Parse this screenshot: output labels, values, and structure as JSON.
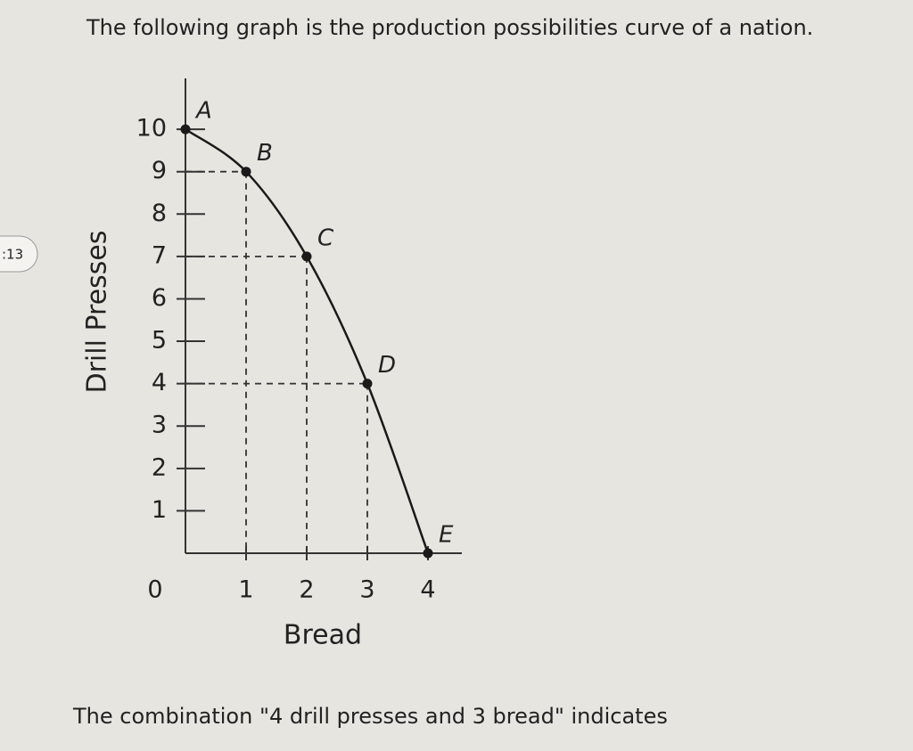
{
  "intro": "The following graph is the production possibilities curve of a nation.",
  "timer": ":13",
  "question": "The combination \"4 drill presses and 3 bread\" indicates",
  "chart_data": {
    "type": "line",
    "x_label": "Bread",
    "y_label": "Drill Presses",
    "x": [
      0,
      1,
      2,
      3,
      4
    ],
    "values": [
      10,
      9,
      7,
      4,
      0
    ],
    "point_labels": [
      "A",
      "B",
      "C",
      "D",
      "E"
    ],
    "color": "#1a1a1a",
    "xlim": [
      0,
      4.5
    ],
    "ylim": [
      0,
      11.2
    ],
    "xticks": [
      0,
      1,
      2,
      3,
      4
    ],
    "yticks": [
      1,
      2,
      3,
      4,
      5,
      6,
      7,
      8,
      9,
      10
    ],
    "guides": true
  }
}
